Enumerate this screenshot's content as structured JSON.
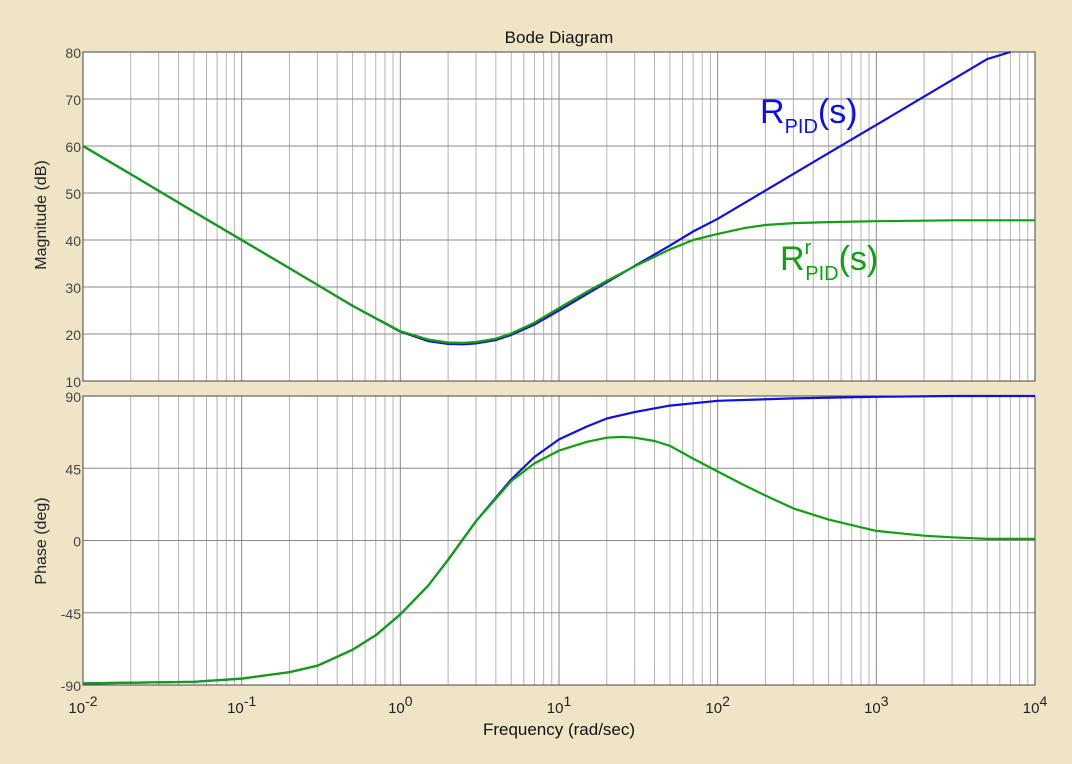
{
  "chart_data": {
    "type": "line",
    "title": "Bode Diagram",
    "xlabel": "Frequency  (rad/sec)",
    "xscale": "log",
    "xlim": [
      0.01,
      10000
    ],
    "grid": true,
    "x_ticks": [
      {
        "base": "10",
        "exp": "-2"
      },
      {
        "base": "10",
        "exp": "-1"
      },
      {
        "base": "10",
        "exp": "0"
      },
      {
        "base": "10",
        "exp": "1"
      },
      {
        "base": "10",
        "exp": "2"
      },
      {
        "base": "10",
        "exp": "3"
      },
      {
        "base": "10",
        "exp": "4"
      }
    ],
    "colors": {
      "R_PID": "#1010e0",
      "R_PID_r": "#10a010"
    },
    "magnitude": {
      "ylabel": "Magnitude (dB)",
      "ylim": [
        10,
        80
      ],
      "yticks": [
        10,
        20,
        30,
        40,
        50,
        60,
        70,
        80
      ],
      "series": [
        {
          "label_main": "R",
          "label_sub": "PID",
          "label_sup": "",
          "label_tail": "(s)",
          "color": "#1010e0",
          "x": [
            0.01,
            0.02,
            0.05,
            0.1,
            0.2,
            0.5,
            1,
            1.5,
            2,
            2.5,
            3,
            4,
            5,
            7,
            10,
            15,
            20,
            30,
            50,
            70,
            100,
            200,
            500,
            1000,
            2000,
            5000,
            7000
          ],
          "y": [
            60,
            54,
            46,
            40,
            34,
            26,
            20.5,
            18.5,
            17.9,
            17.8,
            18,
            18.7,
            19.8,
            22,
            25,
            28.5,
            31,
            34.5,
            38.8,
            41.8,
            44.5,
            50.5,
            58.5,
            64.5,
            70.5,
            78.5,
            80
          ]
        },
        {
          "label_main": "R",
          "label_sub": "PID",
          "label_sup": "r",
          "label_tail": "(s)",
          "color": "#10a010",
          "x": [
            0.01,
            0.02,
            0.05,
            0.1,
            0.2,
            0.5,
            1,
            1.5,
            2,
            2.5,
            3,
            4,
            5,
            7,
            10,
            15,
            20,
            30,
            50,
            70,
            100,
            150,
            200,
            300,
            500,
            1000,
            2000,
            3000,
            5000,
            10000
          ],
          "y": [
            60,
            54,
            46,
            40,
            34,
            26,
            20.6,
            18.8,
            18.2,
            18.1,
            18.3,
            19,
            20.1,
            22.4,
            25.5,
            29,
            31.3,
            34.4,
            38,
            40,
            41.3,
            42.6,
            43.2,
            43.6,
            43.8,
            44,
            44.1,
            44.2,
            44.2,
            44.2
          ]
        }
      ]
    },
    "phase": {
      "ylabel": "Phase (deg)",
      "ylim": [
        -90,
        90
      ],
      "yticks": [
        -90,
        -45,
        0,
        45,
        90
      ],
      "series": [
        {
          "name": "R_PID",
          "color": "#1010e0",
          "x": [
            0.01,
            0.05,
            0.1,
            0.2,
            0.3,
            0.5,
            0.7,
            1,
            1.5,
            2,
            3,
            5,
            7,
            10,
            15,
            20,
            30,
            50,
            100,
            300,
            1000,
            3000,
            10000
          ],
          "y": [
            -89,
            -88,
            -86,
            -82,
            -78,
            -68,
            -59,
            -46,
            -28,
            -12,
            12,
            38,
            52,
            63,
            71,
            76,
            80,
            84,
            87,
            88.5,
            89.5,
            90,
            90
          ]
        },
        {
          "name": "R_PID_r",
          "color": "#10a010",
          "x": [
            0.01,
            0.05,
            0.1,
            0.2,
            0.3,
            0.5,
            0.7,
            1,
            1.5,
            2,
            3,
            5,
            7,
            10,
            15,
            20,
            25,
            30,
            40,
            50,
            70,
            100,
            150,
            200,
            300,
            500,
            1000,
            2000,
            3000,
            5000,
            10000
          ],
          "y": [
            -89,
            -88,
            -86,
            -82,
            -78,
            -68,
            -59,
            -46,
            -28,
            -12,
            12,
            37,
            48,
            56,
            61.5,
            64,
            64.5,
            64,
            62,
            59,
            51,
            43,
            34,
            28,
            20,
            13,
            6,
            3,
            2,
            1,
            1
          ]
        }
      ]
    }
  }
}
